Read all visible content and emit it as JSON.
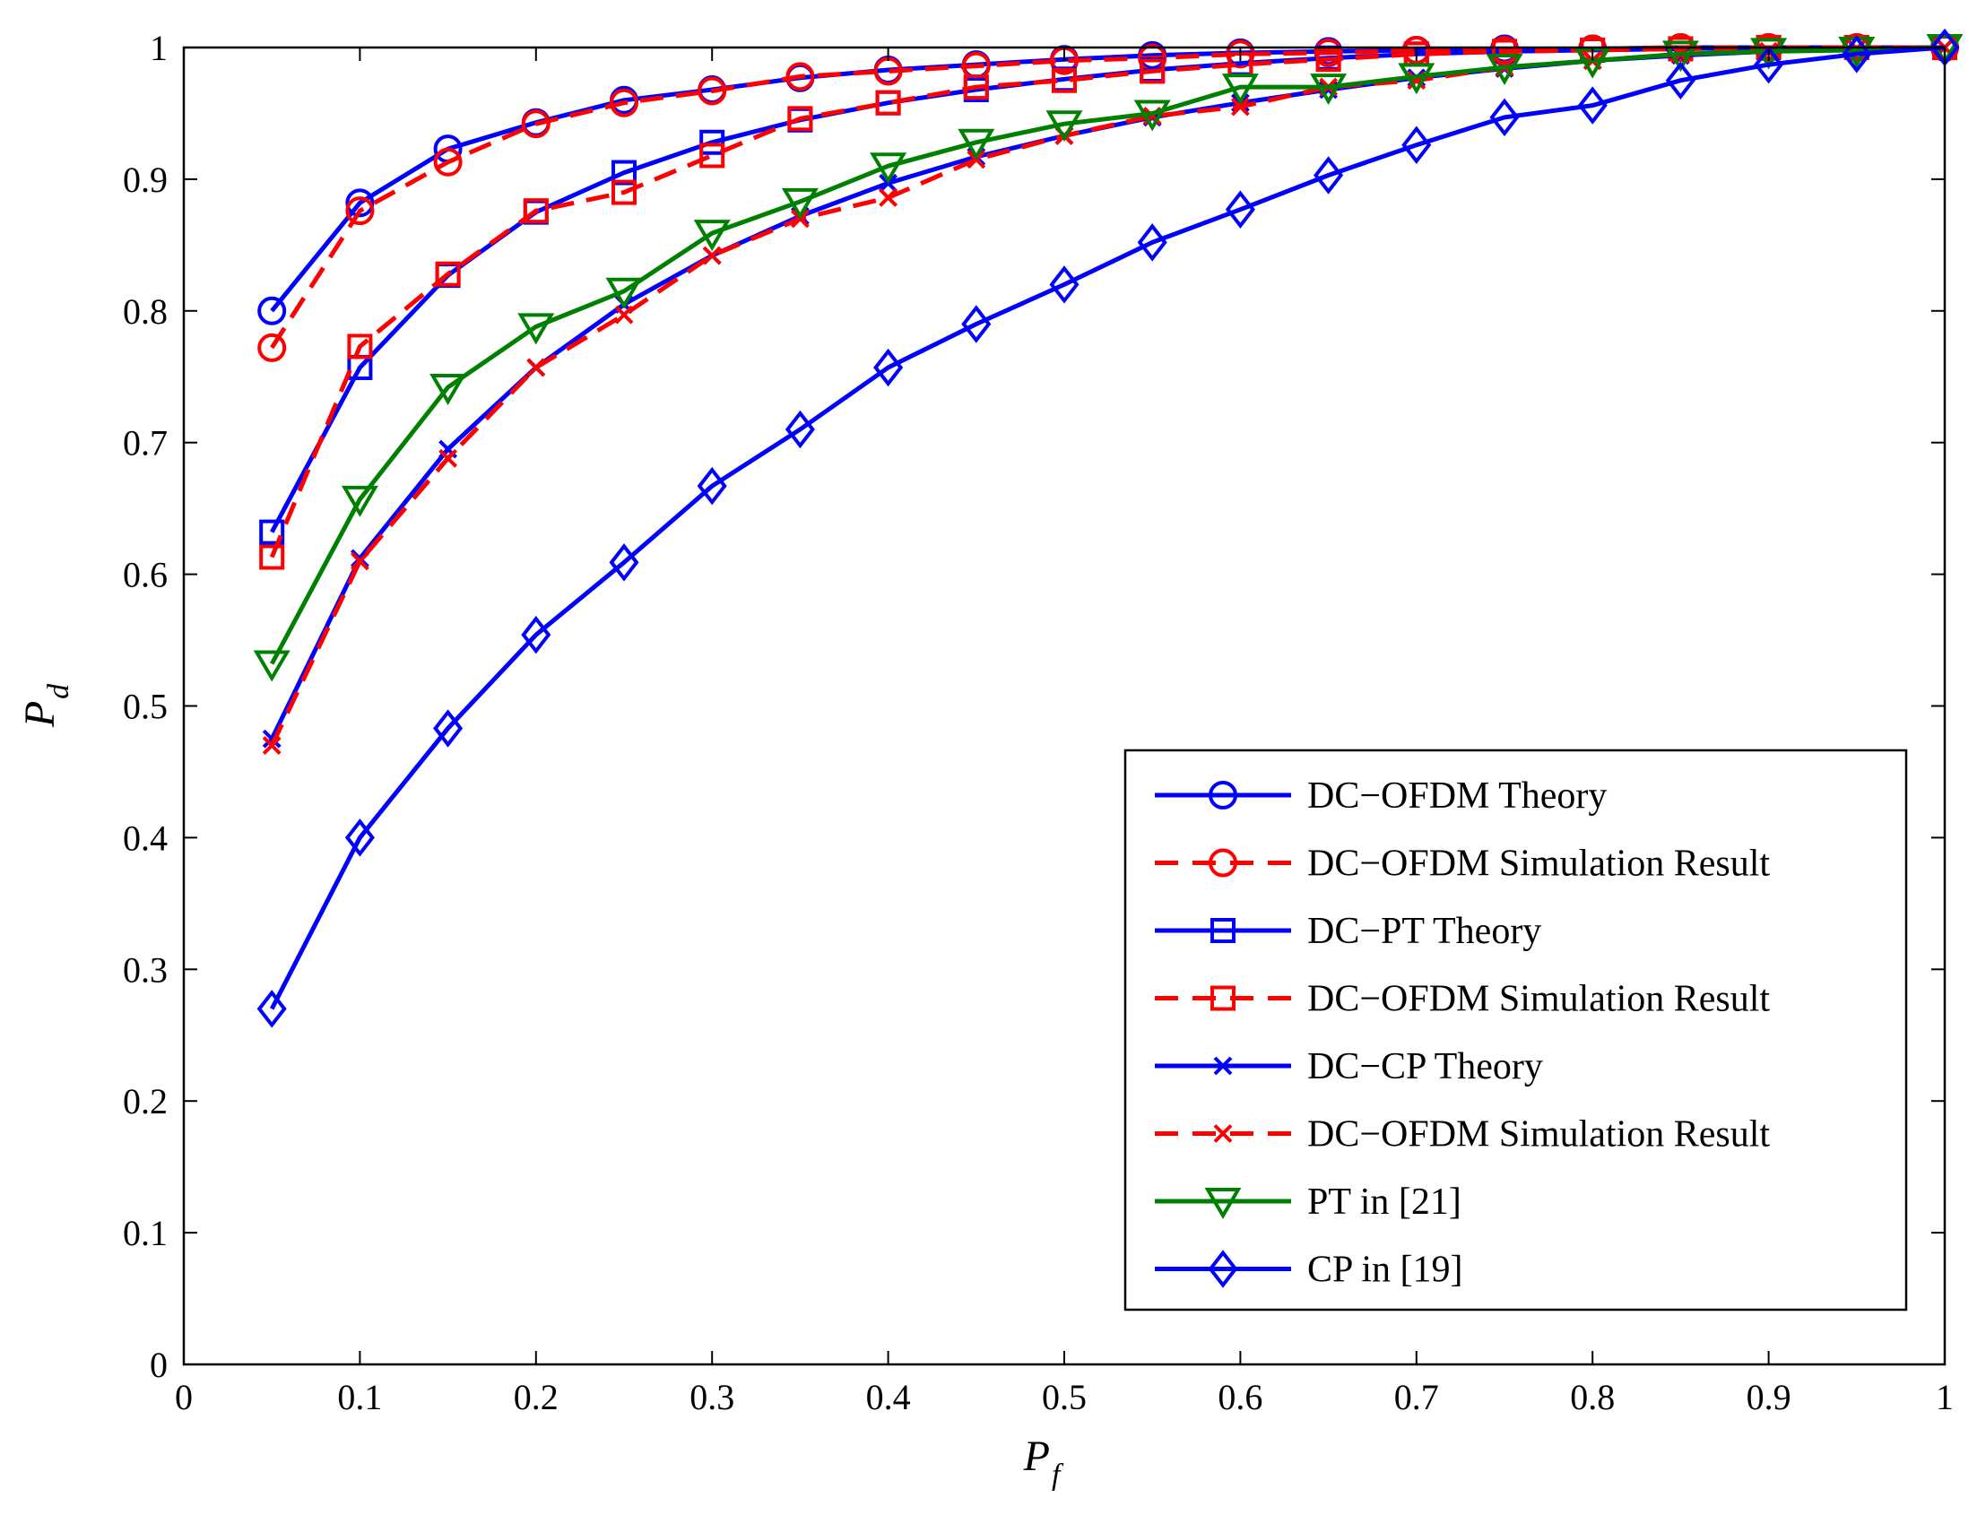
{
  "chart_data": {
    "type": "line",
    "title": "",
    "xlabel": "P",
    "xlabel_sub": "f",
    "ylabel": "P",
    "ylabel_sub": "d",
    "xlim": [
      0,
      1
    ],
    "ylim": [
      0,
      1
    ],
    "x_ticks": [
      "0",
      "0.1",
      "0.2",
      "0.3",
      "0.4",
      "0.5",
      "0.6",
      "0.7",
      "0.8",
      "0.9",
      "1"
    ],
    "y_ticks": [
      "0",
      "0.1",
      "0.2",
      "0.3",
      "0.4",
      "0.5",
      "0.6",
      "0.7",
      "0.8",
      "0.9",
      "1"
    ],
    "grid": false,
    "legend_position": "bottom-right",
    "x": [
      0.05,
      0.1,
      0.15,
      0.2,
      0.25,
      0.3,
      0.35,
      0.4,
      0.45,
      0.5,
      0.55,
      0.6,
      0.65,
      0.7,
      0.75,
      0.8,
      0.85,
      0.9,
      0.95,
      1.0
    ],
    "series": [
      {
        "name": "DC−OFDM Theory",
        "color": "#0000ff",
        "line": "solid",
        "marker": "circle",
        "values": [
          0.8,
          0.882,
          0.923,
          0.943,
          0.96,
          0.968,
          0.977,
          0.983,
          0.987,
          0.991,
          0.994,
          0.996,
          0.997,
          0.998,
          0.999,
          0.999,
          1.0,
          1.0,
          1.0,
          1.0
        ]
      },
      {
        "name": "DC−OFDM Simulation Result",
        "color": "#ff0000",
        "line": "dashed",
        "marker": "circle",
        "values": [
          0.772,
          0.876,
          0.913,
          0.942,
          0.958,
          0.967,
          0.978,
          0.982,
          0.986,
          0.99,
          0.992,
          0.995,
          0.996,
          0.998,
          0.998,
          0.999,
          1.0,
          1.0,
          1.0,
          1.0
        ]
      },
      {
        "name": "DC−PT Theory",
        "color": "#0000ff",
        "line": "solid",
        "marker": "square",
        "values": [
          0.632,
          0.757,
          0.827,
          0.875,
          0.905,
          0.928,
          0.945,
          0.958,
          0.968,
          0.976,
          0.983,
          0.988,
          0.992,
          0.995,
          0.997,
          0.998,
          0.999,
          1.0,
          1.0,
          1.0
        ]
      },
      {
        "name": "DC−OFDM Simulation Result",
        "color": "#ff0000",
        "line": "dashed",
        "marker": "square",
        "values": [
          0.613,
          0.773,
          0.828,
          0.876,
          0.89,
          0.918,
          0.946,
          0.958,
          0.97,
          0.975,
          0.982,
          0.987,
          0.991,
          0.995,
          0.997,
          0.998,
          0.999,
          1.0,
          1.0,
          1.0
        ]
      },
      {
        "name": "DC−CP Theory",
        "color": "#0000ff",
        "line": "solid",
        "marker": "x",
        "values": [
          0.475,
          0.612,
          0.695,
          0.757,
          0.805,
          0.842,
          0.872,
          0.897,
          0.917,
          0.933,
          0.947,
          0.958,
          0.968,
          0.977,
          0.984,
          0.99,
          0.994,
          0.997,
          0.999,
          1.0
        ]
      },
      {
        "name": "DC−OFDM Simulation Result",
        "color": "#ff0000",
        "line": "dashed",
        "marker": "x",
        "values": [
          0.47,
          0.61,
          0.688,
          0.757,
          0.797,
          0.842,
          0.87,
          0.886,
          0.915,
          0.933,
          0.948,
          0.955,
          0.97,
          0.975,
          0.985,
          0.99,
          0.995,
          0.997,
          0.999,
          1.0
        ]
      },
      {
        "name": "PT in [21]",
        "color": "#008000",
        "line": "solid",
        "marker": "triangle-down",
        "values": [
          0.532,
          0.657,
          0.742,
          0.788,
          0.815,
          0.859,
          0.883,
          0.91,
          0.928,
          0.942,
          0.95,
          0.97,
          0.97,
          0.978,
          0.985,
          0.99,
          0.995,
          0.997,
          0.998,
          1.0
        ]
      },
      {
        "name": "CP in [19]",
        "color": "#0000ff",
        "line": "solid",
        "marker": "diamond",
        "values": [
          0.27,
          0.4,
          0.483,
          0.554,
          0.609,
          0.667,
          0.71,
          0.757,
          0.79,
          0.82,
          0.852,
          0.877,
          0.903,
          0.926,
          0.947,
          0.956,
          0.975,
          0.987,
          0.995,
          1.0
        ]
      }
    ]
  }
}
